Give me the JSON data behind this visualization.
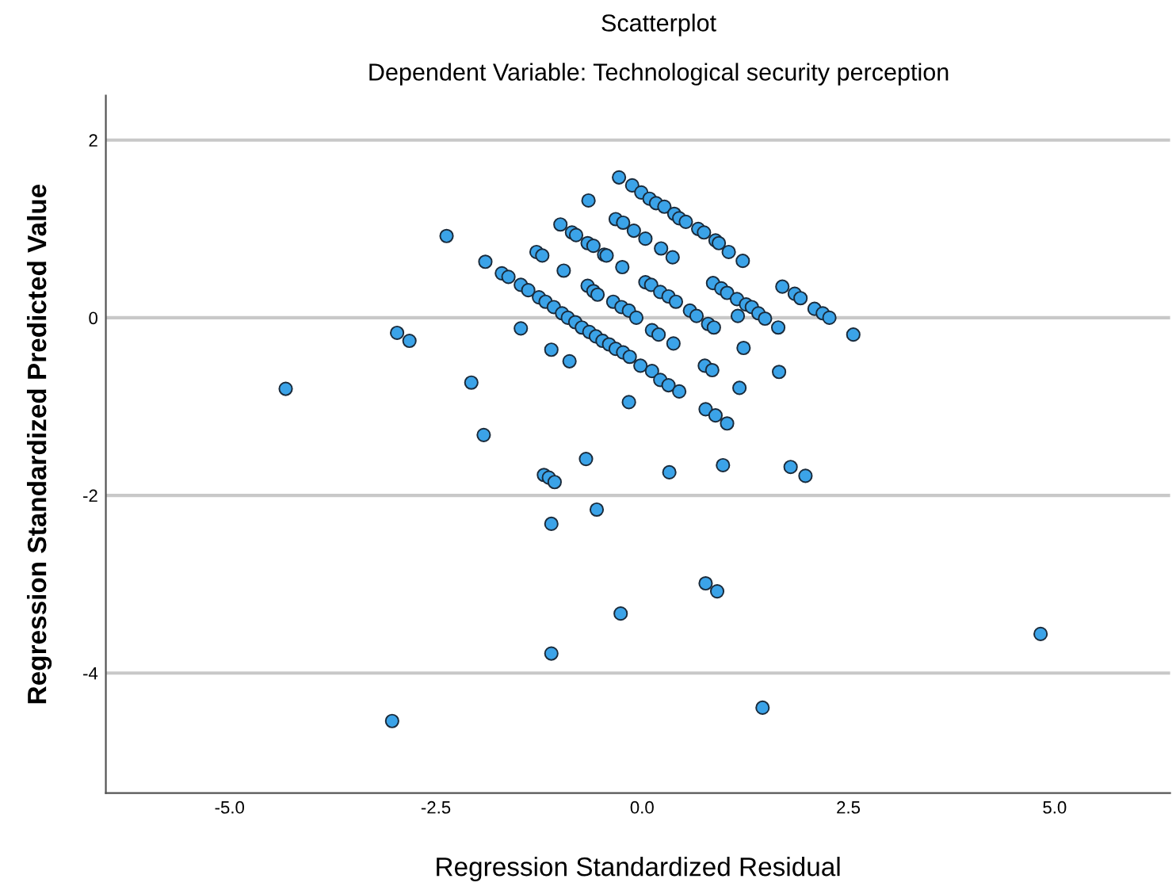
{
  "chart_data": {
    "type": "scatter",
    "title": "Scatterplot",
    "subtitle": "Dependent Variable: Technological security perception",
    "xlabel": "Regression Standardized Residual",
    "ylabel": "Regression Standardized Predicted Value",
    "xlim": [
      -6.5,
      6.4
    ],
    "ylim": [
      -5.35,
      2.5
    ],
    "xticks": [
      {
        "value": -5,
        "label": "-5.0"
      },
      {
        "value": -2.5,
        "label": "-2.5"
      },
      {
        "value": 0,
        "label": "0.0"
      },
      {
        "value": 2.5,
        "label": "2.5"
      },
      {
        "value": 5,
        "label": "5.0"
      }
    ],
    "yticks": [
      -4,
      -2,
      0,
      2
    ],
    "grid": "y",
    "marker": "circle",
    "series": [
      {
        "color": "#3ba3e8",
        "x": [
          -4.32,
          -2.97,
          -2.82,
          -2.37,
          -2.07,
          -1.92,
          -1.9,
          -1.7,
          -1.62,
          -1.47,
          -1.47,
          -1.38,
          -1.28,
          -1.21,
          -1.25,
          -1.17,
          -1.19,
          -1.13,
          -1.06,
          -1.1,
          -1.1,
          -1.1,
          -1.07,
          -0.99,
          -0.95,
          -0.97,
          -0.88,
          -0.85,
          -0.8,
          -0.9,
          -0.81,
          -0.73,
          -0.68,
          -0.65,
          -0.66,
          -0.59,
          -0.66,
          -0.59,
          -0.54,
          -0.64,
          -0.56,
          -0.48,
          -0.55,
          -0.46,
          -0.43,
          -0.4,
          -0.35,
          -0.32,
          -0.28,
          -0.32,
          -0.23,
          -0.25,
          -0.23,
          -0.24,
          -0.26,
          -0.16,
          -0.15,
          -0.16,
          -0.12,
          -0.1,
          -0.07,
          -0.02,
          -0.01,
          0.04,
          0.04,
          0.09,
          0.11,
          0.12,
          0.12,
          0.17,
          0.23,
          0.22,
          0.22,
          0.2,
          0.27,
          0.32,
          0.33,
          0.32,
          0.37,
          0.38,
          0.39,
          0.41,
          0.45,
          0.45,
          0.53,
          0.58,
          0.66,
          0.68,
          0.75,
          0.76,
          0.77,
          0.77,
          0.8,
          0.85,
          0.86,
          0.87,
          0.89,
          0.89,
          0.91,
          0.93,
          0.96,
          0.98,
          1.03,
          1.03,
          1.05,
          1.15,
          1.16,
          1.18,
          1.23,
          1.22,
          1.26,
          1.33,
          1.41,
          1.46,
          1.49,
          1.65,
          1.66,
          1.7,
          1.8,
          1.85,
          1.92,
          1.98,
          2.09,
          2.19,
          2.27,
          2.56,
          4.83,
          -3.03
        ],
        "values": [
          -0.8,
          -0.17,
          -0.26,
          0.92,
          -0.73,
          -1.32,
          0.63,
          0.5,
          0.46,
          -0.12,
          0.37,
          0.31,
          0.74,
          0.7,
          0.23,
          0.18,
          -1.77,
          -1.8,
          -1.85,
          -0.36,
          -2.32,
          -3.78,
          0.12,
          1.05,
          0.53,
          0.05,
          -0.49,
          0.96,
          0.93,
          0.0,
          -0.05,
          -0.11,
          -1.59,
          1.32,
          0.84,
          0.81,
          0.36,
          0.3,
          0.26,
          -0.16,
          -0.21,
          -0.26,
          -2.16,
          0.71,
          0.7,
          -0.3,
          0.18,
          -0.35,
          1.58,
          1.11,
          1.07,
          0.12,
          -0.39,
          0.57,
          -3.33,
          0.08,
          -0.44,
          -0.95,
          1.49,
          0.98,
          0.0,
          -0.54,
          1.41,
          0.89,
          0.4,
          1.34,
          0.37,
          -0.6,
          -0.14,
          1.29,
          0.78,
          0.29,
          -0.7,
          -0.19,
          1.25,
          0.24,
          -1.74,
          -0.76,
          0.68,
          -0.29,
          1.17,
          0.18,
          -0.83,
          1.12,
          1.08,
          0.08,
          0.02,
          1.0,
          0.96,
          -0.54,
          -2.99,
          -1.03,
          -0.07,
          -0.59,
          0.39,
          -0.11,
          -1.1,
          0.87,
          -3.08,
          0.84,
          0.33,
          -1.66,
          -1.19,
          0.28,
          0.74,
          0.21,
          0.02,
          -0.79,
          -0.34,
          0.64,
          0.15,
          0.12,
          0.05,
          -4.39,
          -0.01,
          -0.11,
          -0.61,
          0.35,
          -1.68,
          0.27,
          0.22,
          -1.78,
          0.1,
          0.05,
          0.0,
          -0.19,
          -3.56,
          -4.54
        ]
      }
    ]
  }
}
